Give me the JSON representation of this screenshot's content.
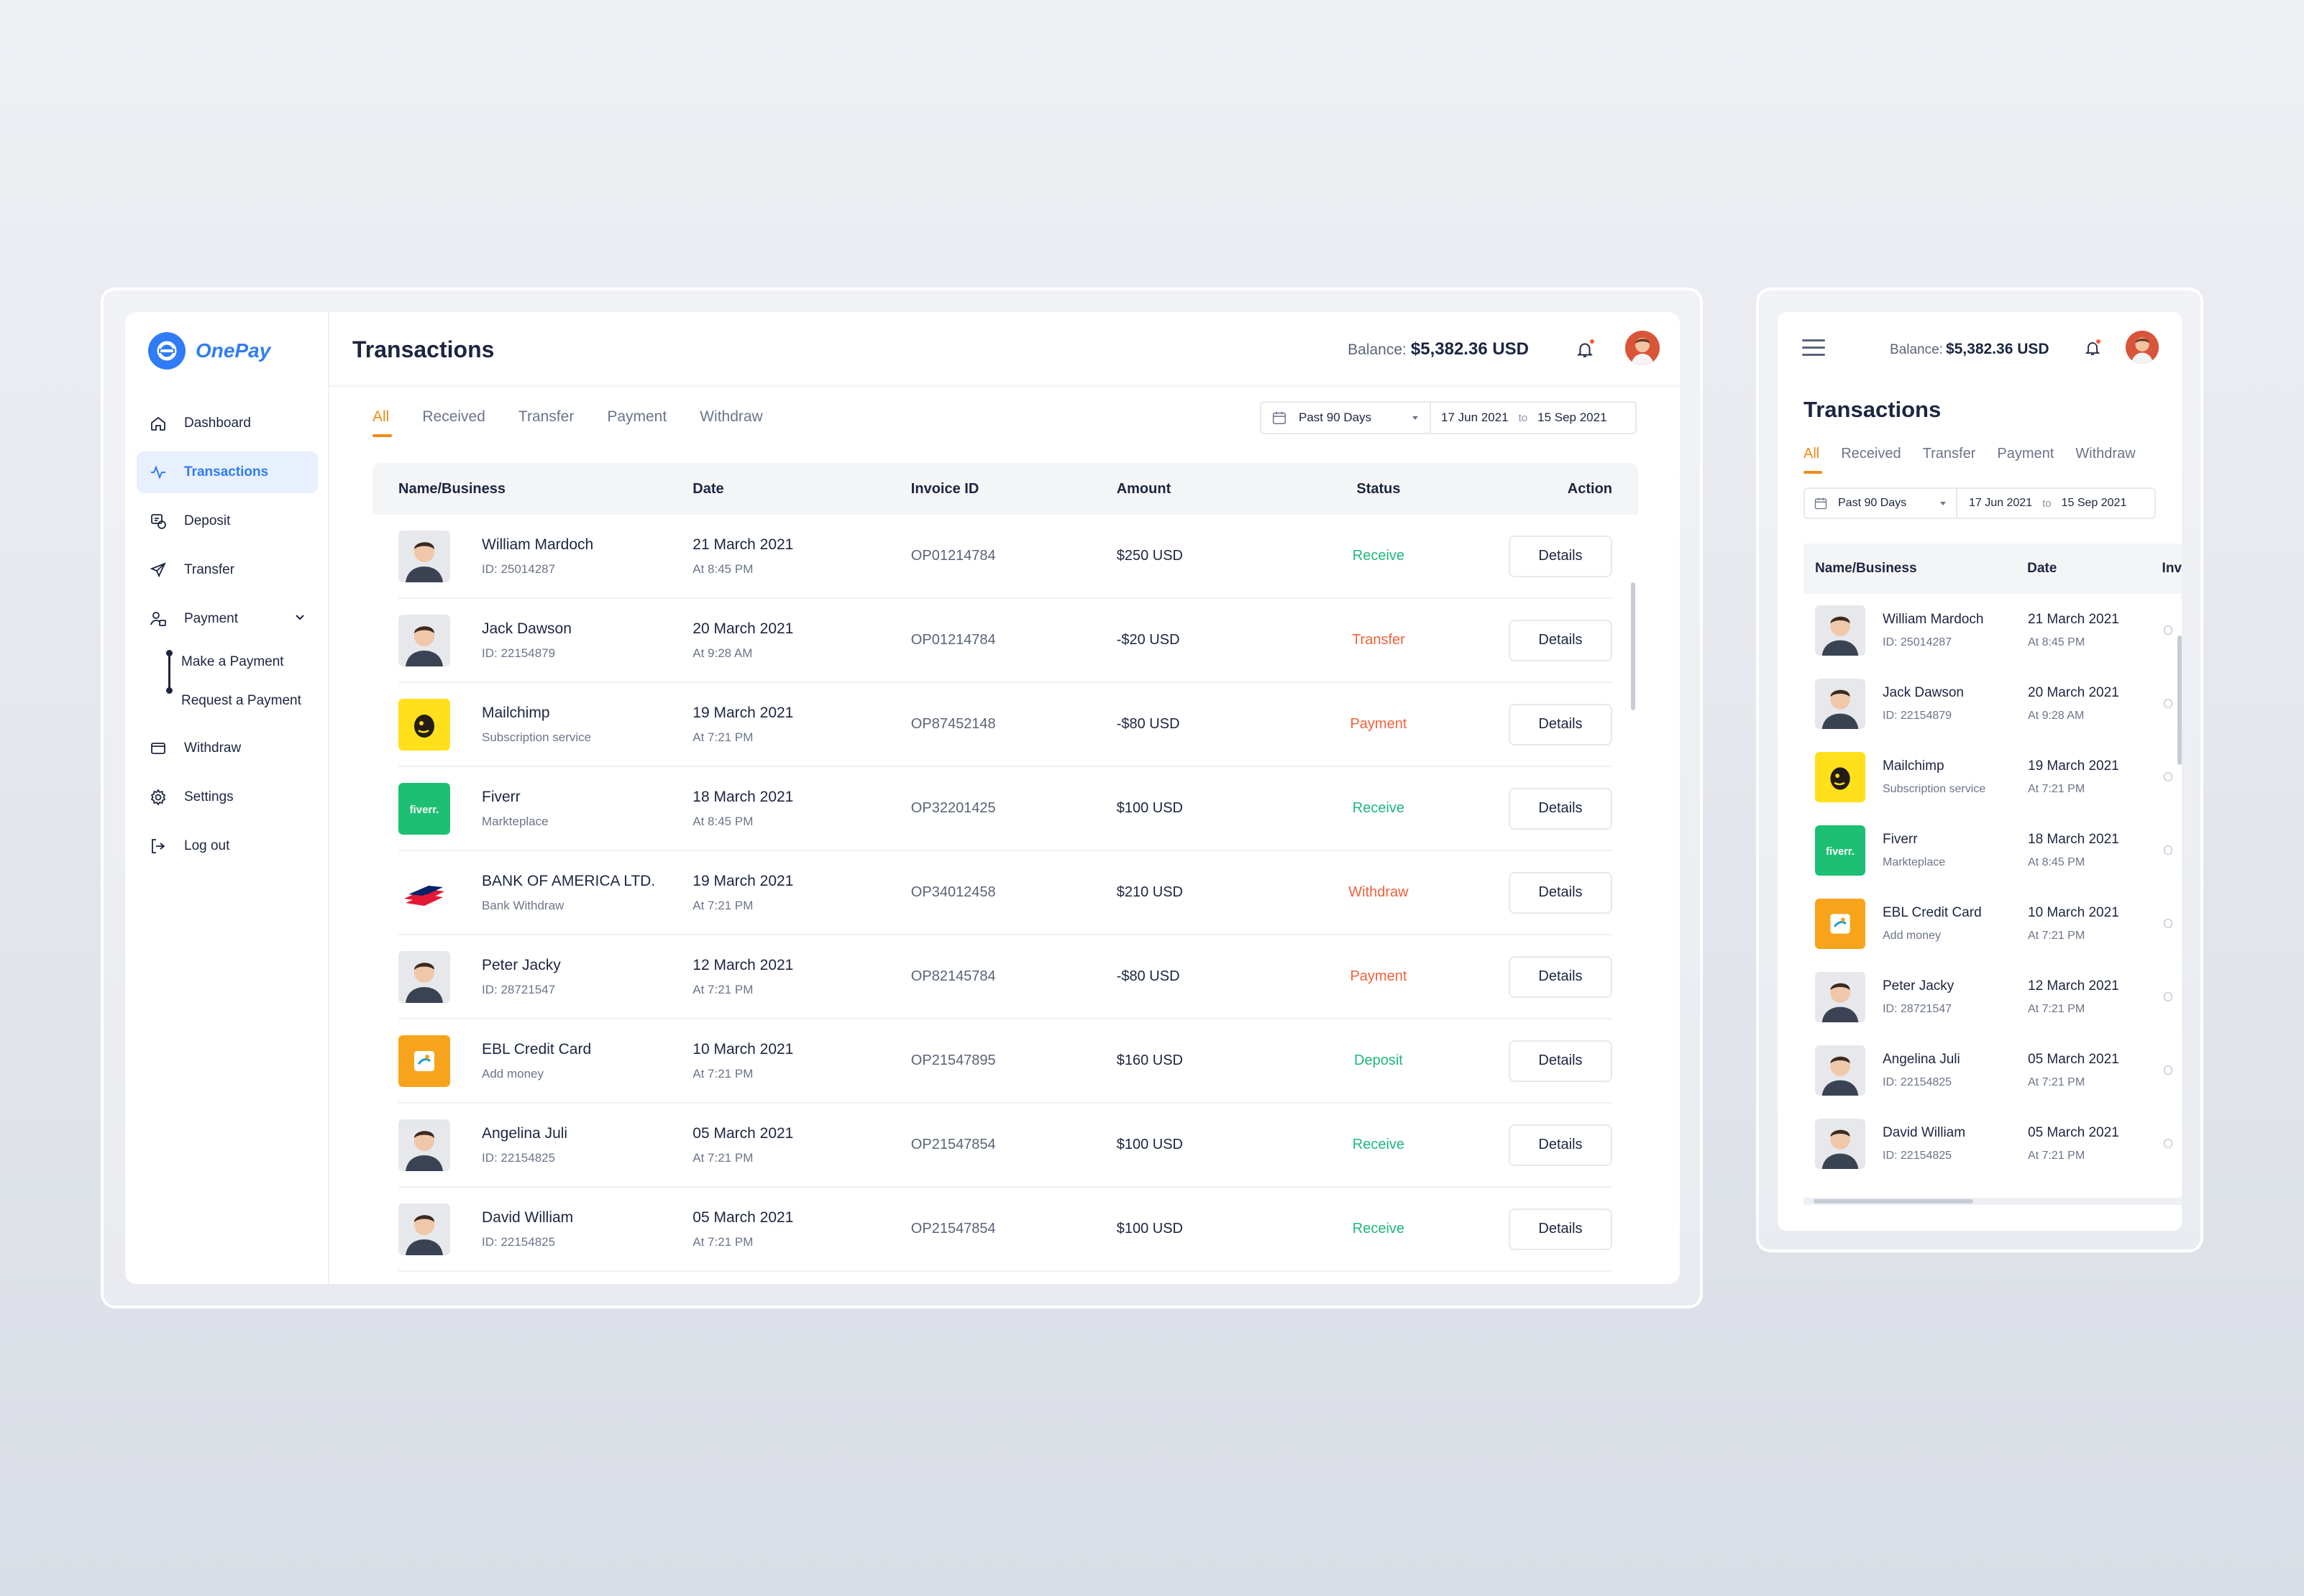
{
  "app": {
    "name": "OnePay",
    "brand_color": "#2f7cf6",
    "accent_color": "#f08c1a"
  },
  "sidebar": {
    "items": [
      {
        "label": "Dashboard",
        "icon": "home-icon"
      },
      {
        "label": "Transactions",
        "icon": "activity-icon",
        "active": true
      },
      {
        "label": "Deposit",
        "icon": "deposit-icon"
      },
      {
        "label": "Transfer",
        "icon": "send-icon"
      },
      {
        "label": "Payment",
        "icon": "payment-icon",
        "expanded": true
      },
      {
        "label": "Withdraw",
        "icon": "wallet-icon"
      },
      {
        "label": "Settings",
        "icon": "gear-icon"
      },
      {
        "label": "Log out",
        "icon": "logout-icon"
      }
    ],
    "payment_sub": [
      "Make a Payment",
      "Request a Payment"
    ]
  },
  "header": {
    "title": "Transactions",
    "balance_label": "Balance:",
    "balance_value": "$5,382.36 USD"
  },
  "tabs": [
    "All",
    "Received",
    "Transfer",
    "Payment",
    "Withdraw"
  ],
  "filter": {
    "range": "Past 90 Days",
    "from": "17 Jun 2021",
    "to_label": "to",
    "to": "15 Sep 2021"
  },
  "table": {
    "headers": [
      "Name/Business",
      "Date",
      "Invoice ID",
      "Amount",
      "Status",
      "Action"
    ],
    "action_label": "Details",
    "rows": [
      {
        "name": "William Mardoch",
        "sub": "ID: 25014287",
        "date": "21 March 2021",
        "time": "At 8:45 PM",
        "invoice": "OP01214784",
        "amount": "$250 USD",
        "status": "Receive",
        "status_color": "#1fb77e",
        "thumb": "person"
      },
      {
        "name": "Jack Dawson",
        "sub": "ID: 22154879",
        "date": "20 March 2021",
        "time": "At 9:28 AM",
        "invoice": "OP01214784",
        "amount": "-$20 USD",
        "status": "Transfer",
        "status_color": "#f0613a",
        "thumb": "person"
      },
      {
        "name": "Mailchimp",
        "sub": "Subscription service",
        "date": "19 March 2021",
        "time": "At 7:21 PM",
        "invoice": "OP87452148",
        "amount": "-$80 USD",
        "status": "Payment",
        "status_color": "#f0613a",
        "thumb": "mailchimp"
      },
      {
        "name": "Fiverr",
        "sub": "Markteplace",
        "date": "18 March 2021",
        "time": "At 8:45 PM",
        "invoice": "OP32201425",
        "amount": "$100 USD",
        "status": "Receive",
        "status_color": "#1fb77e",
        "thumb": "fiverr"
      },
      {
        "name": "BANK OF AMERICA LTD.",
        "sub": "Bank Withdraw",
        "date": "19 March 2021",
        "time": "At 7:21 PM",
        "invoice": "OP34012458",
        "amount": "$210 USD",
        "status": "Withdraw",
        "status_color": "#f0613a",
        "thumb": "bofa"
      },
      {
        "name": "Peter Jacky",
        "sub": "ID: 28721547",
        "date": "12 March 2021",
        "time": "At 7:21 PM",
        "invoice": "OP82145784",
        "amount": "-$80 USD",
        "status": "Payment",
        "status_color": "#f0613a",
        "thumb": "person"
      },
      {
        "name": "EBL Credit Card",
        "sub": "Add money",
        "date": "10 March 2021",
        "time": "At 7:21 PM",
        "invoice": "OP21547895",
        "amount": "$160 USD",
        "status": "Deposit",
        "status_color": "#1fb77e",
        "thumb": "ebl"
      },
      {
        "name": "Angelina Juli",
        "sub": "ID: 22154825",
        "date": "05 March 2021",
        "time": "At 7:21 PM",
        "invoice": "OP21547854",
        "amount": "$100 USD",
        "status": "Receive",
        "status_color": "#1fb77e",
        "thumb": "person"
      },
      {
        "name": "David William",
        "sub": "ID: 22154825",
        "date": "05 March 2021",
        "time": "At 7:21 PM",
        "invoice": "OP21547854",
        "amount": "$100 USD",
        "status": "Receive",
        "status_color": "#1fb77e",
        "thumb": "person"
      }
    ]
  },
  "mobile": {
    "title": "Transactions",
    "headers": [
      "Name/Business",
      "Date",
      "Inv"
    ],
    "invoice_partial": "O",
    "rows": [
      {
        "name": "William Mardoch",
        "sub": "ID: 25014287",
        "date": "21 March 2021",
        "time": "At 8:45 PM",
        "thumb": "person"
      },
      {
        "name": "Jack Dawson",
        "sub": "ID: 22154879",
        "date": "20 March 2021",
        "time": "At 9:28 AM",
        "thumb": "person"
      },
      {
        "name": "Mailchimp",
        "sub": "Subscription service",
        "date": "19 March 2021",
        "time": "At 7:21 PM",
        "thumb": "mailchimp"
      },
      {
        "name": "Fiverr",
        "sub": "Markteplace",
        "date": "18 March 2021",
        "time": "At 8:45 PM",
        "thumb": "fiverr"
      },
      {
        "name": "EBL Credit Card",
        "sub": "Add money",
        "date": "10 March 2021",
        "time": "At 7:21 PM",
        "thumb": "ebl"
      },
      {
        "name": "Peter Jacky",
        "sub": "ID: 28721547",
        "date": "12 March 2021",
        "time": "At 7:21 PM",
        "thumb": "person"
      },
      {
        "name": "Angelina Juli",
        "sub": "ID: 22154825",
        "date": "05 March 2021",
        "time": "At 7:21 PM",
        "thumb": "person"
      },
      {
        "name": "David William",
        "sub": "ID: 22154825",
        "date": "05 March 2021",
        "time": "At 7:21 PM",
        "thumb": "person"
      }
    ]
  }
}
